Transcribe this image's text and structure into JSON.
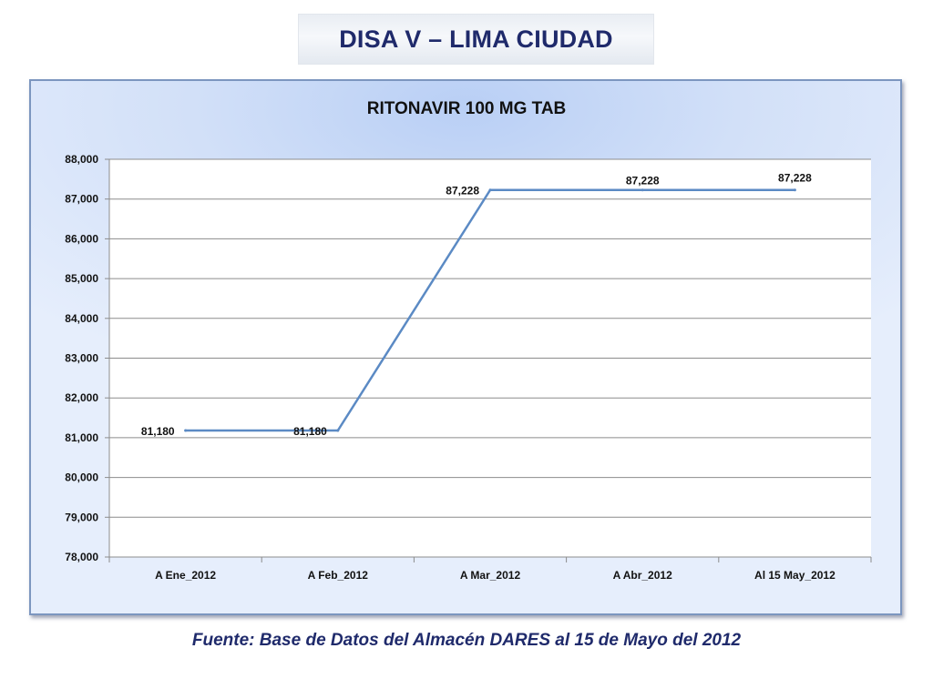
{
  "slide": {
    "title": "DISA V – LIMA CIUDAD",
    "source_note": "Fuente: Base de Datos del Almacén DARES al 15 de Mayo del 2012"
  },
  "chart_data": {
    "type": "line",
    "title": "RITONAVIR 100 MG TAB",
    "xlabel": "",
    "ylabel": "",
    "categories": [
      "A Ene_2012",
      "A Feb_2012",
      "A Mar_2012",
      "A Abr_2012",
      "Al 15 May_2012"
    ],
    "series": [
      {
        "values": [
          81180,
          81180,
          87228,
          87228,
          87228
        ],
        "color": "#5b8ac4"
      }
    ],
    "data_labels": [
      "81,180",
      "81,180",
      "87,228",
      "87,228",
      "87,228"
    ],
    "ylim": [
      78000,
      88000
    ],
    "yticks": [
      78000,
      79000,
      80000,
      81000,
      82000,
      83000,
      84000,
      85000,
      86000,
      87000,
      88000
    ],
    "ytick_labels": [
      "78,000",
      "79,000",
      "80,000",
      "81,000",
      "82,000",
      "83,000",
      "84,000",
      "85,000",
      "86,000",
      "87,000",
      "88,000"
    ],
    "grid": true,
    "legend": "none",
    "colors": {
      "text": "#111111",
      "grid": "#8c8c8c",
      "line": "#5b8ac4"
    }
  }
}
